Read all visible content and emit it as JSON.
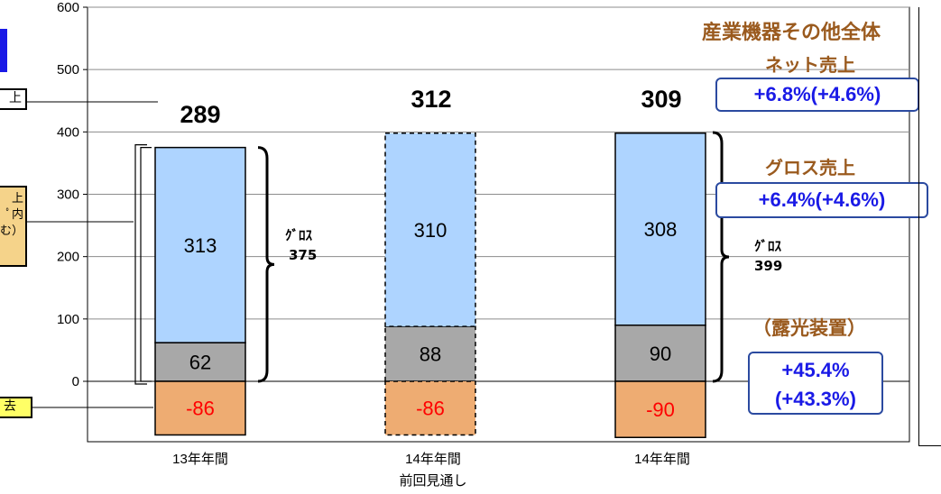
{
  "chart_data": {
    "type": "bar",
    "stacked": true,
    "categories": [
      "13年年間",
      "14年年間\n前回見通し",
      "14年年間"
    ],
    "ylim": [
      -90,
      600
    ],
    "yticks": [
      0,
      100,
      200,
      300,
      400,
      500,
      600
    ],
    "grid": true,
    "series": [
      {
        "values": [
          313,
          310,
          308
        ],
        "color": "#a9d1ff"
      },
      {
        "values": [
          62,
          88,
          90
        ],
        "color": "#a6a6a6"
      },
      {
        "values": [
          -86,
          -86,
          -90
        ],
        "color": "#e8a66a"
      }
    ],
    "totals": [
      289,
      312,
      309
    ],
    "gross_totals": [
      375,
      null,
      399
    ],
    "dashed_bar": "14年年間\n前回見通し"
  },
  "x_labels": {
    "c0": "13年年間",
    "c1_line1": "14年年間",
    "c1_line2": "前回見通し",
    "c2": "14年年間"
  },
  "bar_labels": {
    "top": [
      "313",
      "310",
      "308"
    ],
    "mid": [
      "62",
      "88",
      "90"
    ],
    "neg": [
      "-86",
      "-86",
      "-90"
    ],
    "totals": [
      "289",
      "312",
      "309"
    ]
  },
  "gross": {
    "left_title": "ｸﾞﾛｽ",
    "left_value": "375",
    "right_title": "ｸﾞﾛｽ",
    "right_value": "399"
  },
  "right_panel": {
    "header": "産業機器その他全体",
    "net_label": "ネット売上",
    "net_box": "+6.8%(+4.6%)",
    "gross_label": "グロス売上",
    "gross_box": "+6.4%(+4.6%)",
    "exposure_label": "（露光装置）",
    "exposure_line1": "+45.4%",
    "exposure_line2": "(+43.3%)"
  },
  "left_partial": {
    "box1": "上",
    "box2_line1": "上",
    "box2_line2": "ﾟ内",
    "box2_line3": "む）",
    "box3": "去"
  },
  "colors": {
    "accent_blue": "#1a1ae6",
    "header_brown": "#9a5a1e",
    "negative_red": "#ff0000",
    "callout_border": "#2b4aa0",
    "label_yellow": "#ffff66",
    "label_tan": "#f5d38a"
  }
}
